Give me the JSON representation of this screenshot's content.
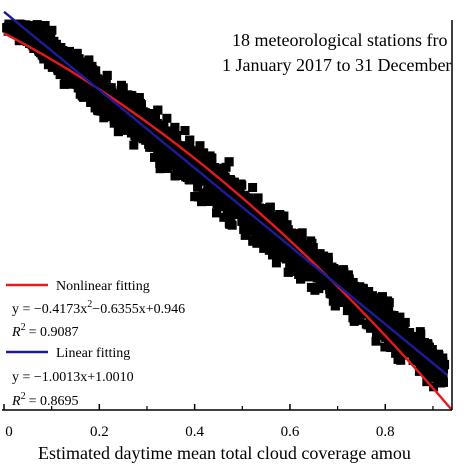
{
  "chart_data": {
    "type": "scatter",
    "annotation": [
      "18 meteorological stations fro",
      "1 January 2017 to 31 December"
    ],
    "xlabel": "Estimated daytime mean total cloud coverage amou",
    "ylabel": "",
    "xlim": [
      0,
      0.94
    ],
    "ylim": [
      -0.02,
      0.98
    ],
    "x_ticks": [
      "0",
      "0.2",
      "0.4",
      "0.6",
      "0.8"
    ],
    "x_tick_values": [
      0,
      0.2,
      0.4,
      0.6,
      0.8
    ],
    "grid": false,
    "legend_placement": "bottom-left",
    "scatter_color": "#000000",
    "series": [
      {
        "name": "Nonlinear fitting",
        "kind": "quadratic",
        "coefficients": {
          "a": -0.4173,
          "b": -0.6355,
          "c": 0.946
        },
        "equation_prefix": "y = −0.4173x",
        "equation_exp": "2",
        "equation_suffix": "−0.6355x+0.946",
        "r2_value": "= 0.9087",
        "color": "#e8191d"
      },
      {
        "name": "Linear fitting",
        "kind": "linear",
        "coefficients": {
          "a": -1.0013,
          "b": 1.001
        },
        "equation": "y = −1.0013x+1.0010",
        "r2_value": "= 0.8695",
        "color": "#1c1c9a"
      }
    ],
    "r2_label": "R"
  }
}
